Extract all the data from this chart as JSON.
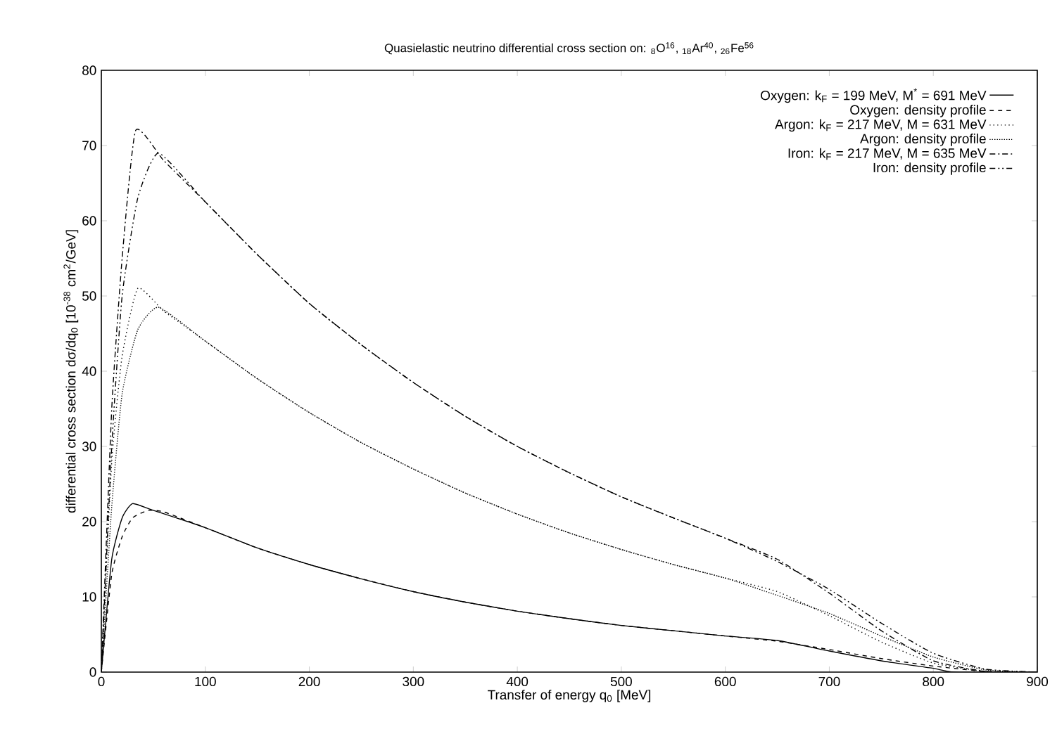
{
  "chart_data": {
    "type": "line",
    "title": "Quasielastic neutrino differential cross section on: $_{8}$O$^{16}$, $_{18}$Ar$^{40}$, $_{26}$Fe$^{56}$",
    "xlabel": "Transfer of energy q$_{0}$ [MeV]",
    "ylabel": "differential cross section dσ/dq$_{0}$ [10$^{-38}$ cm$^{2}$/GeV]",
    "xlim": [
      0,
      900
    ],
    "ylim": [
      0,
      80
    ],
    "xticks": [
      0,
      100,
      200,
      300,
      400,
      500,
      600,
      700,
      800,
      900
    ],
    "yticks": [
      0,
      10,
      20,
      30,
      40,
      50,
      60,
      70,
      80
    ],
    "legend": "top right",
    "grid": false,
    "series": [
      {
        "name": "Oxygen: k$_{F}$ = 199 MeV, M$^{*}$ = 691 MeV",
        "color": "#000000",
        "line_style": "solid",
        "x": [
          0,
          10,
          20,
          30,
          50,
          100,
          150,
          200,
          250,
          300,
          350,
          400,
          450,
          500,
          550,
          600,
          650,
          700,
          750,
          800,
          820,
          900
        ],
        "values": [
          0,
          15,
          20.5,
          22.4,
          21.5,
          19.2,
          16.5,
          14.3,
          12.4,
          10.7,
          9.3,
          8.1,
          7.1,
          6.2,
          5.5,
          4.8,
          4.2,
          2.8,
          1.5,
          0.5,
          0,
          0
        ]
      },
      {
        "name": "Oxygen: density profile",
        "color": "#000000",
        "line_style": "dashed",
        "x": [
          0,
          10,
          20,
          30,
          45,
          60,
          100,
          150,
          200,
          250,
          300,
          350,
          400,
          450,
          500,
          550,
          600,
          650,
          700,
          750,
          800,
          850,
          900
        ],
        "values": [
          0,
          13,
          18,
          20.5,
          21.5,
          21.3,
          19.2,
          16.5,
          14.3,
          12.4,
          10.7,
          9.3,
          8.1,
          7.1,
          6.2,
          5.5,
          4.8,
          4.1,
          3.0,
          1.8,
          0.8,
          0.1,
          0
        ]
      },
      {
        "name": "Argon: k$_{F}$ = 217 MeV, M  = 631 MeV",
        "color": "#000000",
        "line_style": "dotted",
        "x": [
          0,
          10,
          20,
          35,
          60,
          100,
          150,
          200,
          250,
          300,
          350,
          400,
          450,
          500,
          550,
          600,
          650,
          700,
          750,
          800,
          850,
          900
        ],
        "values": [
          0,
          28,
          42,
          51,
          48,
          44,
          39,
          34.5,
          30.5,
          27,
          23.8,
          21,
          18.5,
          16.3,
          14.3,
          12.5,
          10.7,
          7.5,
          4,
          1.2,
          0.1,
          0
        ]
      },
      {
        "name": "Argon: density profile",
        "color": "#000000",
        "line_style": "densely dotted",
        "x": [
          0,
          10,
          20,
          35,
          55,
          100,
          150,
          200,
          250,
          300,
          350,
          400,
          450,
          500,
          550,
          600,
          650,
          700,
          750,
          800,
          850,
          900
        ],
        "values": [
          0,
          22,
          37,
          45.5,
          48.5,
          44,
          39,
          34.5,
          30.5,
          27,
          23.8,
          21,
          18.5,
          16.3,
          14.3,
          12.5,
          10.2,
          7.8,
          4.8,
          2,
          0.3,
          0
        ]
      },
      {
        "name": "Iron: k$_{F}$ = 217 MeV, M  = 635 MeV",
        "color": "#000000",
        "line_style": "dashdot",
        "x": [
          0,
          10,
          20,
          33,
          60,
          100,
          150,
          200,
          250,
          300,
          350,
          400,
          450,
          500,
          550,
          600,
          650,
          700,
          750,
          800,
          850,
          900
        ],
        "values": [
          0,
          35,
          55,
          72,
          68,
          62.5,
          55.5,
          49,
          43.5,
          38.5,
          34,
          30,
          26.5,
          23.3,
          20.5,
          17.8,
          15,
          10.5,
          5.5,
          1.5,
          0.1,
          0
        ]
      },
      {
        "name": "Iron: density profile",
        "color": "#000000",
        "line_style": "dashdotdot",
        "x": [
          0,
          10,
          20,
          35,
          55,
          100,
          150,
          200,
          250,
          300,
          350,
          400,
          450,
          500,
          550,
          600,
          650,
          700,
          750,
          800,
          850,
          900
        ],
        "values": [
          0,
          30,
          50,
          63,
          69,
          62.5,
          55.5,
          49,
          43.5,
          38.5,
          34,
          30,
          26.5,
          23.3,
          20.5,
          17.8,
          14.7,
          11,
          6.5,
          2.5,
          0.4,
          0
        ]
      }
    ]
  }
}
